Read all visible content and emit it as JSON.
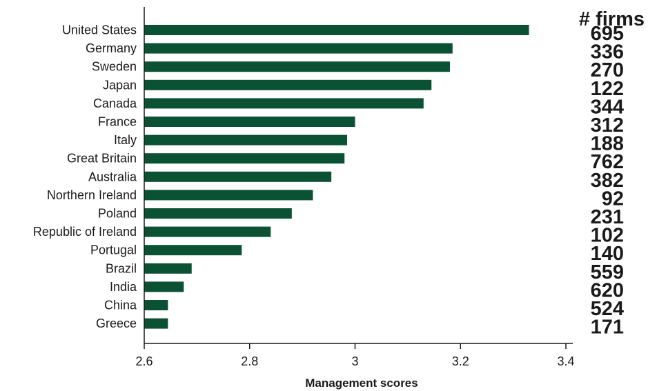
{
  "chart_data": {
    "type": "bar",
    "orientation": "horizontal",
    "categories": [
      "United States",
      "Germany",
      "Sweden",
      "Japan",
      "Canada",
      "France",
      "Italy",
      "Great Britain",
      "Australia",
      "Northern Ireland",
      "Poland",
      "Republic of Ireland",
      "Portugal",
      "Brazil",
      "India",
      "China",
      "Greece"
    ],
    "values": [
      3.33,
      3.185,
      3.18,
      3.145,
      3.13,
      3.0,
      2.985,
      2.98,
      2.955,
      2.92,
      2.88,
      2.84,
      2.785,
      2.69,
      2.675,
      2.645,
      2.645
    ],
    "firms_header": "# firms",
    "firms": [
      "695",
      "336",
      "270",
      "122",
      "344",
      "312",
      "188",
      "762",
      "382",
      "92",
      "231",
      "102",
      "140",
      "559",
      "620",
      "524",
      "171"
    ],
    "xlabel": "Management scores",
    "ylabel": "",
    "xlim": [
      2.6,
      3.4
    ],
    "xticks": [
      2.6,
      2.8,
      3.0,
      3.2,
      3.4
    ],
    "xtick_labels": [
      "2.6",
      "2.8",
      "3",
      "3.2",
      "3.4"
    ],
    "bar_color": "#0b5234",
    "grid": false,
    "legend": "none"
  }
}
